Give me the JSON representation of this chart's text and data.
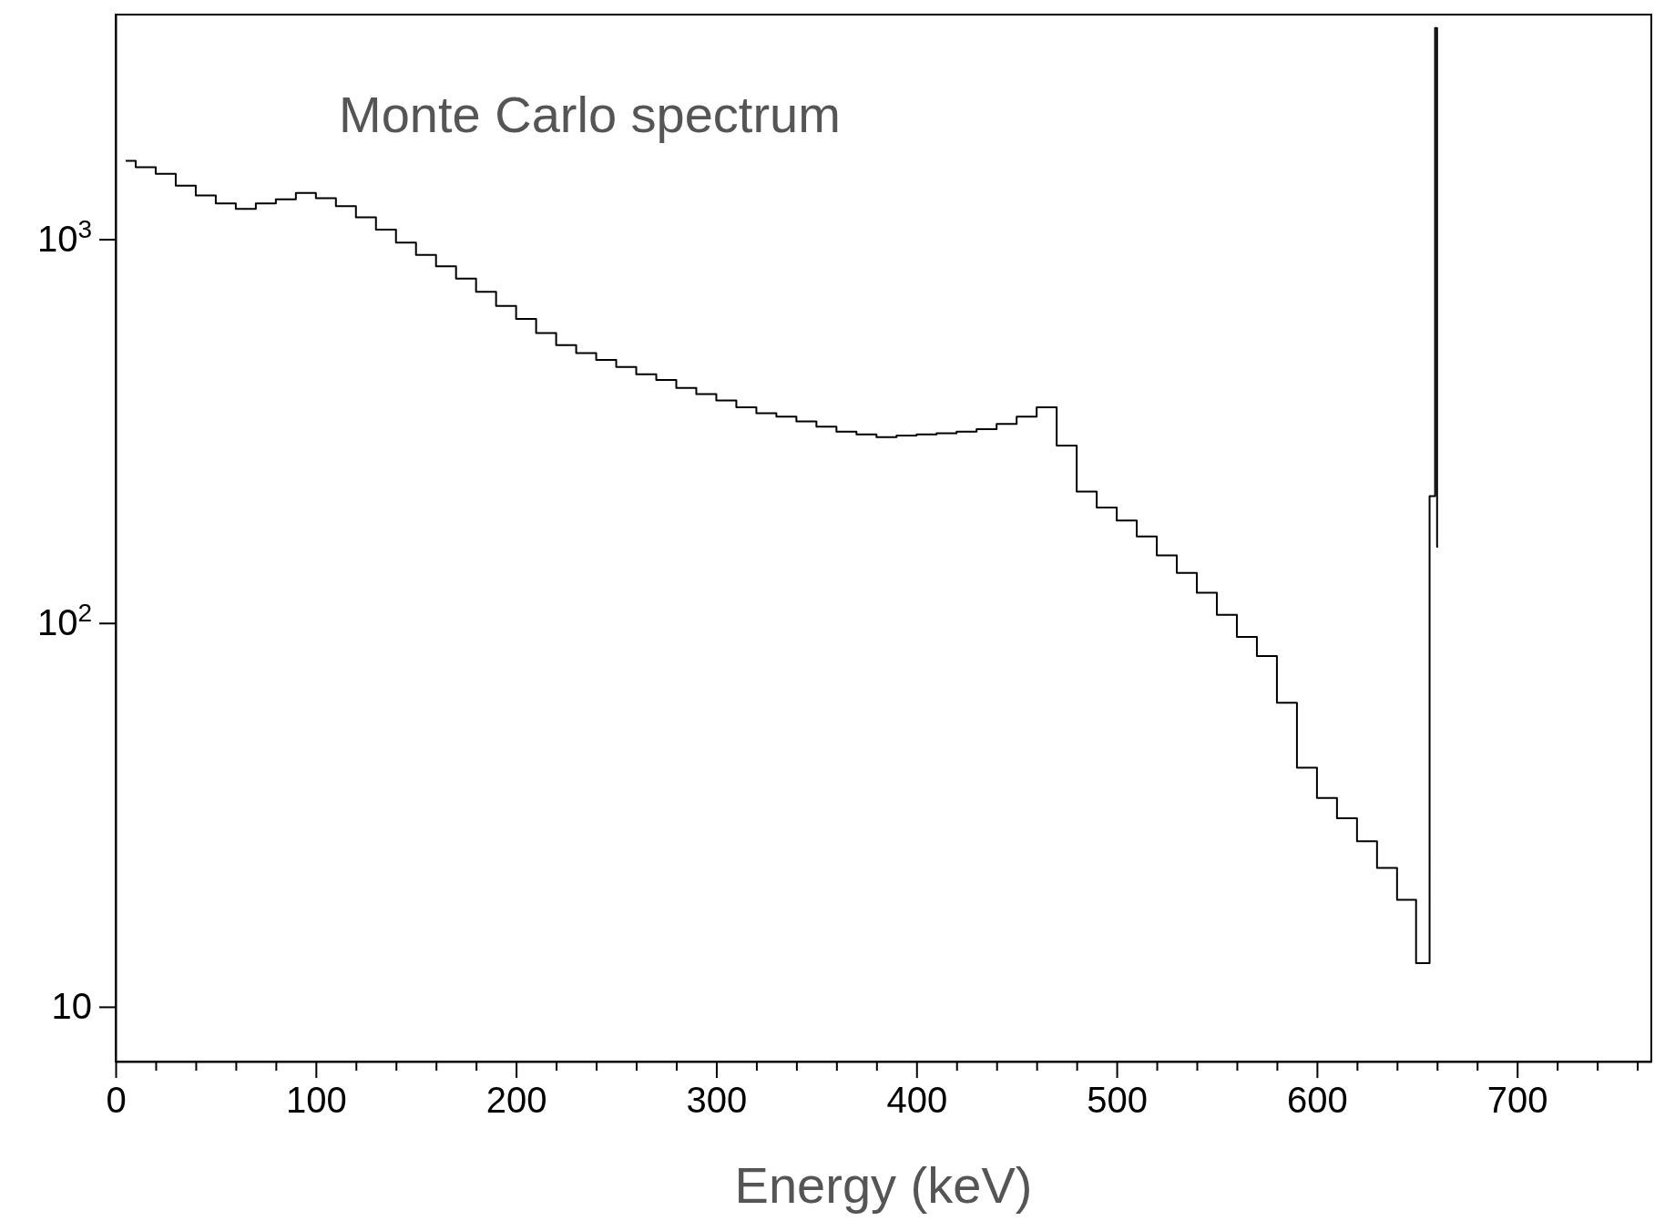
{
  "chart_data": {
    "type": "step",
    "title": "Monte Carlo spectrum",
    "xlabel": "Energy (keV)",
    "log": "y",
    "grid": false,
    "color": "#000000",
    "marker": "none",
    "x": [
      5,
      15,
      25,
      35,
      45,
      55,
      65,
      75,
      85,
      95,
      105,
      115,
      125,
      135,
      145,
      155,
      165,
      175,
      185,
      195,
      205,
      215,
      225,
      235,
      245,
      255,
      265,
      275,
      285,
      295,
      305,
      315,
      325,
      335,
      345,
      355,
      365,
      375,
      385,
      395,
      405,
      415,
      425,
      435,
      445,
      455,
      465,
      475,
      485,
      495,
      505,
      515,
      525,
      535,
      545,
      555,
      565,
      575,
      585,
      595,
      605,
      615,
      625,
      635,
      645,
      654,
      658.5,
      659.5,
      660.5
    ],
    "values": [
      1600,
      1540,
      1480,
      1380,
      1300,
      1240,
      1200,
      1240,
      1270,
      1320,
      1280,
      1220,
      1140,
      1060,
      980,
      910,
      850,
      790,
      730,
      670,
      620,
      570,
      530,
      505,
      485,
      465,
      445,
      430,
      410,
      395,
      380,
      365,
      352,
      345,
      335,
      325,
      315,
      310,
      305,
      308,
      310,
      312,
      315,
      320,
      330,
      345,
      365,
      290,
      220,
      200,
      185,
      168,
      150,
      135,
      120,
      105,
      92,
      82,
      62,
      42,
      35,
      31,
      27,
      23,
      19,
      13,
      214,
      3550,
      158
    ],
    "xlim": [
      0,
      767
    ],
    "ylim": [
      7.2,
      3850
    ],
    "xticks": [
      0,
      {
        "value": 20,
        "label": null
      },
      {
        "value": 40,
        "label": null
      },
      {
        "value": 60,
        "label": null
      },
      {
        "value": 80,
        "label": null
      },
      100,
      {
        "value": 120,
        "label": null
      },
      {
        "value": 140,
        "label": null
      },
      {
        "value": 160,
        "label": null
      },
      {
        "value": 180,
        "label": null
      },
      200,
      {
        "value": 220,
        "label": null
      },
      {
        "value": 240,
        "label": null
      },
      {
        "value": 260,
        "label": null
      },
      {
        "value": 280,
        "label": null
      },
      300,
      {
        "value": 320,
        "label": null
      },
      {
        "value": 340,
        "label": null
      },
      {
        "value": 360,
        "label": null
      },
      {
        "value": 380,
        "label": null
      },
      400,
      {
        "value": 420,
        "label": null
      },
      {
        "value": 440,
        "label": null
      },
      {
        "value": 460,
        "label": null
      },
      {
        "value": 480,
        "label": null
      },
      500,
      {
        "value": 520,
        "label": null
      },
      {
        "value": 540,
        "label": null
      },
      {
        "value": 560,
        "label": null
      },
      {
        "value": 580,
        "label": null
      },
      600,
      {
        "value": 620,
        "label": null
      },
      {
        "value": 640,
        "label": null
      },
      {
        "value": 660,
        "label": null
      },
      {
        "value": 680,
        "label": null
      },
      700,
      {
        "value": 720,
        "label": null
      },
      {
        "value": 740,
        "label": null
      },
      {
        "value": 760,
        "label": null
      }
    ],
    "yticks": [
      10,
      {
        "value": 100,
        "label": "10$^{2}$"
      },
      {
        "value": 1000,
        "label": "10$^{3}$"
      }
    ]
  }
}
